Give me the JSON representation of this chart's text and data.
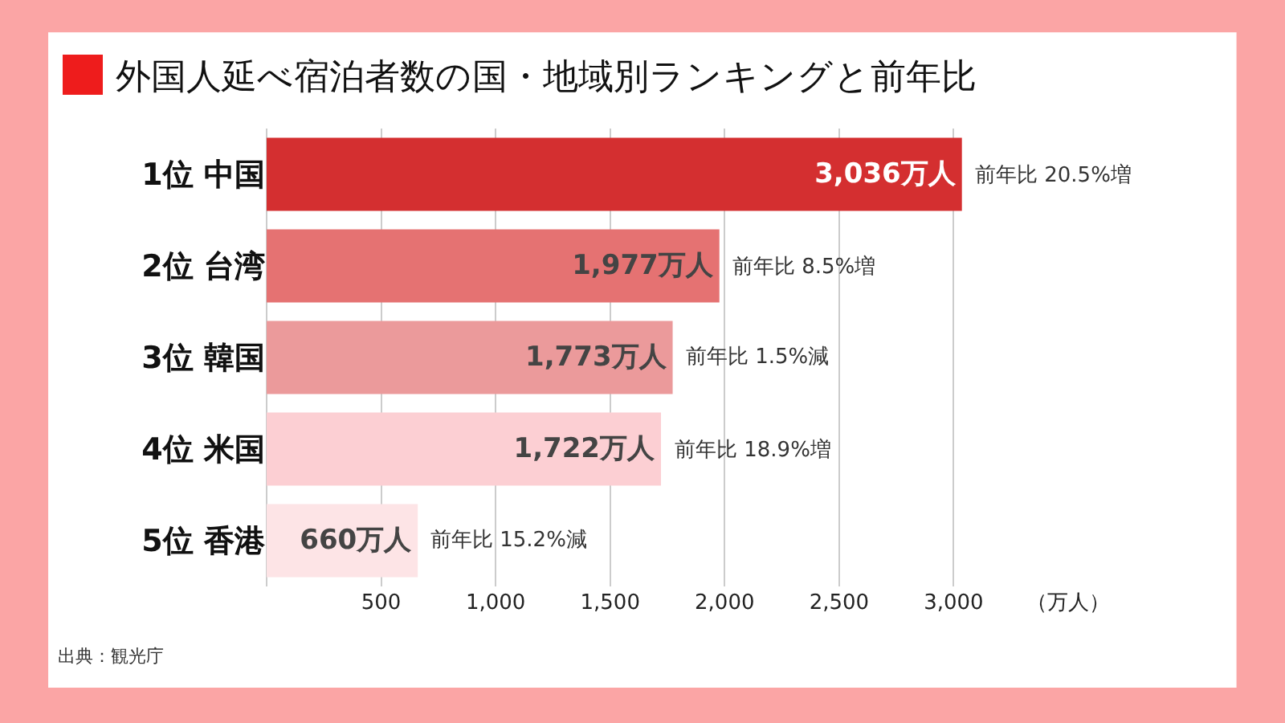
{
  "chart_data": {
    "type": "bar",
    "orientation": "horizontal",
    "title": "外国人延べ宿泊者数の国・地域別ランキングと前年比",
    "categories": [
      "1位 中国",
      "2位 台湾",
      "3位 韓国",
      "4位 米国",
      "5位 香港"
    ],
    "values": [
      3036,
      1977,
      1773,
      1722,
      660
    ],
    "colors": [
      "#d42f30",
      "#e57272",
      "#eb9a9b",
      "#fccfd3",
      "#fde4e6"
    ],
    "value_labels": [
      "3,036万人",
      "1,977万人",
      "1,773万人",
      "1,722万人",
      "660万人"
    ],
    "xlim": [
      0,
      3500
    ],
    "xticks": [
      500,
      {
        "value": 1000,
        "label": "1,000"
      },
      {
        "value": 1500,
        "label": "1,500"
      },
      {
        "value": 2000,
        "label": "2,000"
      },
      {
        "value": 2500,
        "label": "2,500"
      },
      {
        "value": 3000,
        "label": "3,000"
      },
      {
        "value": 3500,
        "label": "（万人）"
      }
    ],
    "grid": "x",
    "legend": false,
    "annotations": [
      {
        "text": "前年比 20.5%増",
        "x": 3036,
        "y": "1位 中国"
      },
      {
        "text": "前年比 8.5%増",
        "x": 1977,
        "y": "2位 台湾"
      },
      {
        "text": "前年比 1.5%減",
        "x": 1773,
        "y": "3位 韓国"
      },
      {
        "text": "前年比 18.9%増",
        "x": 1722,
        "y": "4位 米国"
      },
      {
        "text": "前年比 15.2%減",
        "x": 660,
        "y": "5位 香港"
      },
      "出典：観光庁"
    ]
  }
}
